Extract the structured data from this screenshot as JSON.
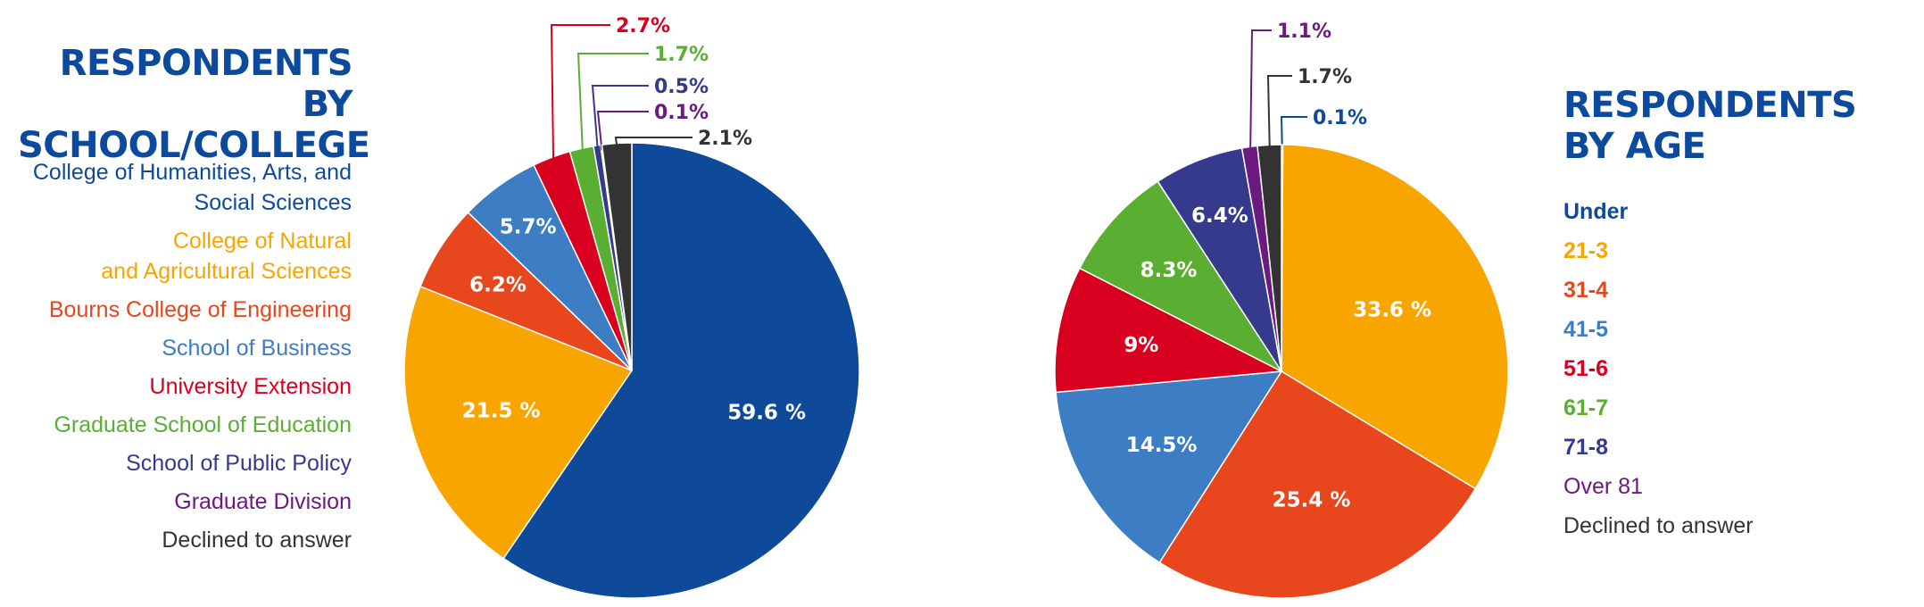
{
  "colors": {
    "title": "#0b4a9c"
  },
  "charts": {
    "school": {
      "title_lines": [
        "RESPONDENTS BY",
        "SCHOOL/COLLEGE"
      ],
      "legend": [
        {
          "label": "College of Humanities, Arts, and\nSocial Sciences",
          "color": "#0e4a99"
        },
        {
          "label": "College of Natural\nand Agricultural Sciences",
          "color": "#f9a500"
        },
        {
          "label": "Bourns College of Engineering",
          "color": "#e8461c"
        },
        {
          "label": "School of Business",
          "color": "#3d7dc3"
        },
        {
          "label": "University Extension",
          "color": "#d9001f"
        },
        {
          "label": "Graduate School of Education",
          "color": "#5aaf32"
        },
        {
          "label": "School of Public Policy",
          "color": "#353a8c"
        },
        {
          "label": "Graduate Division",
          "color": "#6b1b80"
        },
        {
          "label": "Declined to answer",
          "color": "#333333"
        }
      ]
    },
    "age": {
      "title_lines": [
        "RESPONDENTS",
        "BY AGE"
      ],
      "legend": [
        {
          "label": "Under",
          "color": "#0e4a99"
        },
        {
          "label": "21-3",
          "color": "#f9a500"
        },
        {
          "label": "31-4",
          "color": "#e8461c"
        },
        {
          "label": "41-5",
          "color": "#3d7dc3"
        },
        {
          "label": "51-6",
          "color": "#d9001f"
        },
        {
          "label": "61-7",
          "color": "#5aaf32"
        },
        {
          "label": "71-8",
          "color": "#353a8c"
        },
        {
          "label": "Over 81",
          "color": "#6b1b80"
        },
        {
          "label": "Declined to answer",
          "color": "#333333"
        }
      ]
    }
  },
  "chart_data": [
    {
      "type": "pie",
      "title": "RESPONDENTS BY SCHOOL/COLLEGE",
      "start": "top, clockwise",
      "slices": [
        {
          "label": "College of Humanities, Arts, and Social Sciences",
          "value": 59.6,
          "display": "59.6 %",
          "color": "#0e4a99",
          "label_style": "inside"
        },
        {
          "label": "College of Natural and Agricultural Sciences",
          "value": 21.5,
          "display": "21.5 %",
          "color": "#f9a500",
          "label_style": "inside"
        },
        {
          "label": "Bourns College of Engineering",
          "value": 6.2,
          "display": "6.2%",
          "color": "#e8461c",
          "label_style": "inside"
        },
        {
          "label": "School of Business",
          "value": 5.7,
          "display": "5.7%",
          "color": "#3d7dc3",
          "label_style": "inside"
        },
        {
          "label": "University Extension",
          "value": 2.7,
          "display": "2.7%",
          "color": "#d9001f",
          "label_style": "callout"
        },
        {
          "label": "Graduate School of Education",
          "value": 1.7,
          "display": "1.7%",
          "color": "#5aaf32",
          "label_style": "callout"
        },
        {
          "label": "School of Public Policy",
          "value": 0.5,
          "display": "0.5%",
          "color": "#353a8c",
          "label_style": "callout"
        },
        {
          "label": "Graduate Division",
          "value": 0.1,
          "display": "0.1%",
          "color": "#6b1b80",
          "label_style": "callout"
        },
        {
          "label": "Declined to answer",
          "value": 2.1,
          "display": "2.1%",
          "color": "#333333",
          "label_style": "callout"
        }
      ]
    },
    {
      "type": "pie",
      "title": "RESPONDENTS BY AGE",
      "start": "top, clockwise",
      "slices": [
        {
          "label": "Under",
          "value": 0.1,
          "display": "0.1%",
          "color": "#0e4a99",
          "label_style": "callout"
        },
        {
          "label": "21-3",
          "value": 33.6,
          "display": "33.6 %",
          "color": "#f9a500",
          "label_style": "inside"
        },
        {
          "label": "31-4",
          "value": 25.4,
          "display": "25.4 %",
          "color": "#e8461c",
          "label_style": "inside"
        },
        {
          "label": "41-5",
          "value": 14.5,
          "display": "14.5%",
          "color": "#3d7dc3",
          "label_style": "inside"
        },
        {
          "label": "51-6",
          "value": 9,
          "display": "9%",
          "color": "#d9001f",
          "label_style": "inside"
        },
        {
          "label": "61-7",
          "value": 8.3,
          "display": "8.3%",
          "color": "#5aaf32",
          "label_style": "inside"
        },
        {
          "label": "71-8",
          "value": 6.4,
          "display": "6.4%",
          "color": "#353a8c",
          "label_style": "inside"
        },
        {
          "label": "Over 81",
          "value": 1.1,
          "display": "1.1%",
          "color": "#6b1b80",
          "label_style": "callout"
        },
        {
          "label": "Declined to answer",
          "value": 1.7,
          "display": "1.7%",
          "color": "#333333",
          "label_style": "callout"
        }
      ]
    }
  ]
}
